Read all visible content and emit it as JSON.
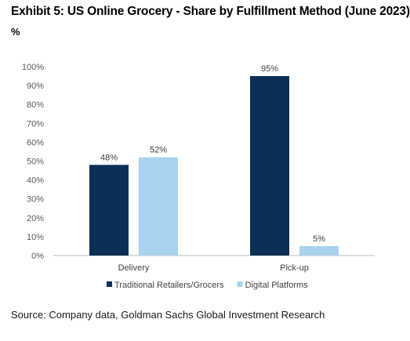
{
  "title": "Exhibit 5: US Online Grocery - Share by Fulfillment Method (June 2023)",
  "unit": "%",
  "source": "Source: Company data, Goldman Sachs Global Investment Research",
  "colors": {
    "series1": "#0b2f55",
    "series2": "#a9d3ef",
    "axis": "#bfbfbf",
    "text": "#404040"
  },
  "chart_data": {
    "type": "bar",
    "title": "Exhibit 5: US Online Grocery - Share by Fulfillment Method (June 2023)",
    "categories": [
      "Delivery",
      "Pick-up"
    ],
    "series": [
      {
        "name": "Traditional Retailers/Grocers",
        "values": [
          48,
          95
        ],
        "labels": [
          "48%",
          "95%"
        ]
      },
      {
        "name": "Digital Platforms",
        "values": [
          52,
          5
        ],
        "labels": [
          "52%",
          "5%"
        ]
      }
    ],
    "ylim": [
      0,
      100
    ],
    "yticks": [
      "0%",
      "10%",
      "20%",
      "30%",
      "40%",
      "50%",
      "60%",
      "70%",
      "80%",
      "90%",
      "100%"
    ],
    "grid": false,
    "legend": "bottom"
  }
}
